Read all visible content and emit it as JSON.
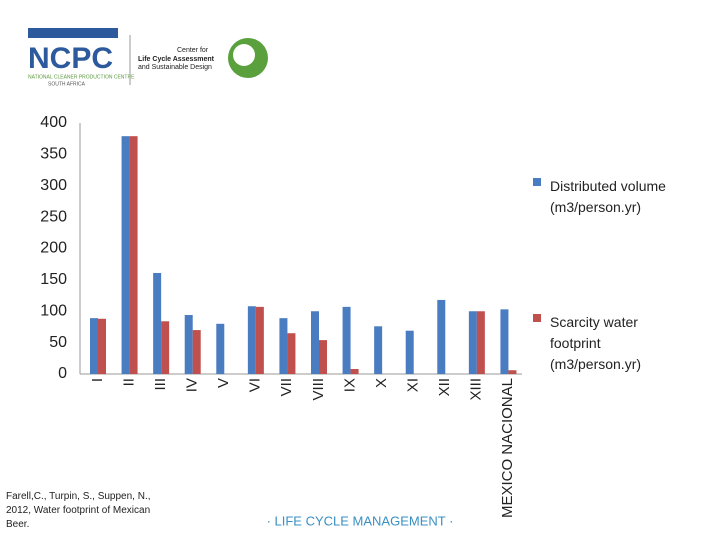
{
  "header": {
    "logo": "NCPC",
    "logo_sub": "NATIONAL CLEANER PRODUCTION CENTRE",
    "logo_country": "SOUTH AFRICA",
    "center_1": "Center for",
    "center_2": "Life Cycle Assessment",
    "center_3": "and Sustainable Design"
  },
  "chart_data": {
    "type": "bar",
    "categories": [
      "I",
      "II",
      "III",
      "IV",
      "V",
      "VI",
      "VII",
      "VIII",
      "IX",
      "X",
      "XI",
      "XII",
      "XIII",
      "MEXICO NACIONAL"
    ],
    "series": [
      {
        "name": "Distributed volume (m3/person.yr)",
        "color": "#4a7cc1",
        "values": [
          89,
          379,
          161,
          94,
          80,
          108,
          89,
          100,
          107,
          76,
          69,
          118,
          100,
          103
        ]
      },
      {
        "name": "Scarcity water footprint (m3/person.yr)",
        "color": "#c0504d",
        "values": [
          88,
          379,
          84,
          70,
          0,
          107,
          65,
          54,
          8,
          0,
          0,
          0,
          100,
          6
        ]
      }
    ],
    "ylim": [
      0,
      400
    ],
    "yticks": [
      0,
      50,
      100,
      150,
      200,
      250,
      300,
      350,
      400
    ],
    "grid": false
  },
  "footer": {
    "citation": "Farell,C., Turpin, S., Suppen, N., 2012, Water footprint of Mexican Beer.",
    "brand": "· LIFE CYCLE MANAGEMENT ·"
  }
}
